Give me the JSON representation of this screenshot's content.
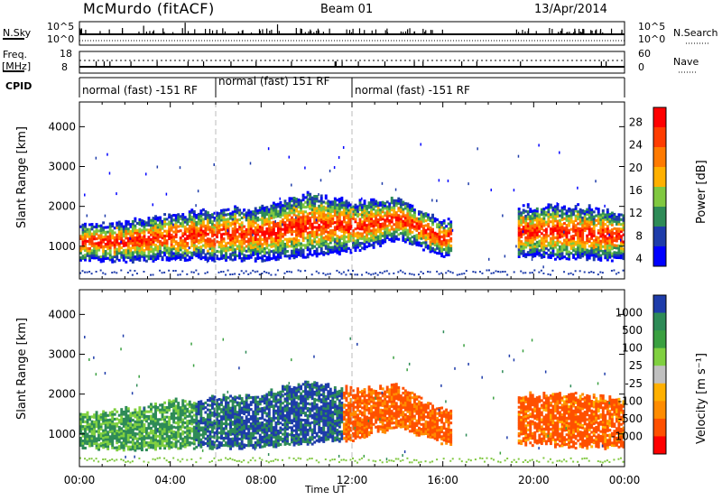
{
  "header": {
    "station": "McMurdo (fitACF)",
    "beam": "Beam 01",
    "date": "13/Apr/2014"
  },
  "strips": {
    "nsky_label": "N.Sky",
    "nsky_ticks": [
      "10^5",
      "10^0"
    ],
    "nsearch_label": "N.Search",
    "nsearch_ticks": [
      "10^5",
      "10^0"
    ],
    "freq_label": "Freq.",
    "freq_unit": "[MHz]",
    "freq_ticks": [
      "18",
      "8"
    ],
    "nave_label": "Nave",
    "nave_ticks": [
      "60",
      "0"
    ],
    "cpid_label": "CPID",
    "cpid_segments": [
      {
        "label": "normal (fast) -151 RF",
        "start_h": 0,
        "end_h": 6
      },
      {
        "label": "normal (fast) 151 RF",
        "start_h": 6,
        "end_h": 12
      },
      {
        "label": "normal (fast) -151 RF",
        "start_h": 12,
        "end_h": 24
      }
    ]
  },
  "chart_data": [
    {
      "type": "heatmap",
      "name": "power",
      "ylabel": "Slant Range [km]",
      "y_ticks": [
        "1000",
        "2000",
        "3000",
        "4000"
      ],
      "ylim": [
        180,
        4620
      ],
      "xlim": [
        0,
        24
      ],
      "colorbar_label": "Power [dB]",
      "colorbar_ticks": [
        "28",
        "24",
        "20",
        "16",
        "12",
        "8",
        "4"
      ],
      "colorbar_colors": [
        "#ff0000",
        "#ff3c00",
        "#ff7a00",
        "#ffb000",
        "#80c840",
        "#2e8b57",
        "#1e3caa",
        "#0000ff"
      ],
      "echo_band": [
        {
          "h": 0,
          "lo": 700,
          "hi": 1400
        },
        {
          "h": 2,
          "lo": 650,
          "hi": 1500
        },
        {
          "h": 4,
          "lo": 700,
          "hi": 1700
        },
        {
          "h": 6,
          "lo": 700,
          "hi": 1800
        },
        {
          "h": 8,
          "lo": 700,
          "hi": 1900
        },
        {
          "h": 10,
          "lo": 800,
          "hi": 2200
        },
        {
          "h": 12,
          "lo": 900,
          "hi": 2000
        },
        {
          "h": 14,
          "lo": 1200,
          "hi": 2100
        },
        {
          "h": 16,
          "lo": 800,
          "hi": 1500
        },
        {
          "h": 19.5,
          "lo": 800,
          "hi": 1900
        },
        {
          "h": 22,
          "lo": 700,
          "hi": 1900
        },
        {
          "h": 24,
          "lo": 700,
          "hi": 1700
        }
      ]
    },
    {
      "type": "heatmap",
      "name": "velocity",
      "ylabel": "Slant Range [km]",
      "y_ticks": [
        "1000",
        "2000",
        "3000",
        "4000"
      ],
      "ylim": [
        180,
        4620
      ],
      "xlim": [
        0,
        24
      ],
      "colorbar_label": "Velocity [m s⁻¹]",
      "colorbar_ticks": [
        "1000",
        "500",
        "100",
        "25",
        "-25",
        "-100",
        "-500",
        "-1000"
      ],
      "colorbar_colors": [
        "#1e3caa",
        "#2e8b57",
        "#3aa040",
        "#80d040",
        "#c0c0c0",
        "#ffb000",
        "#ff8c00",
        "#ff5000",
        "#ff0000"
      ],
      "x_ticks": [
        "00:00",
        "04:00",
        "08:00",
        "12:00",
        "16:00",
        "20:00",
        "00:00"
      ],
      "xlabel": "Time UT"
    }
  ]
}
